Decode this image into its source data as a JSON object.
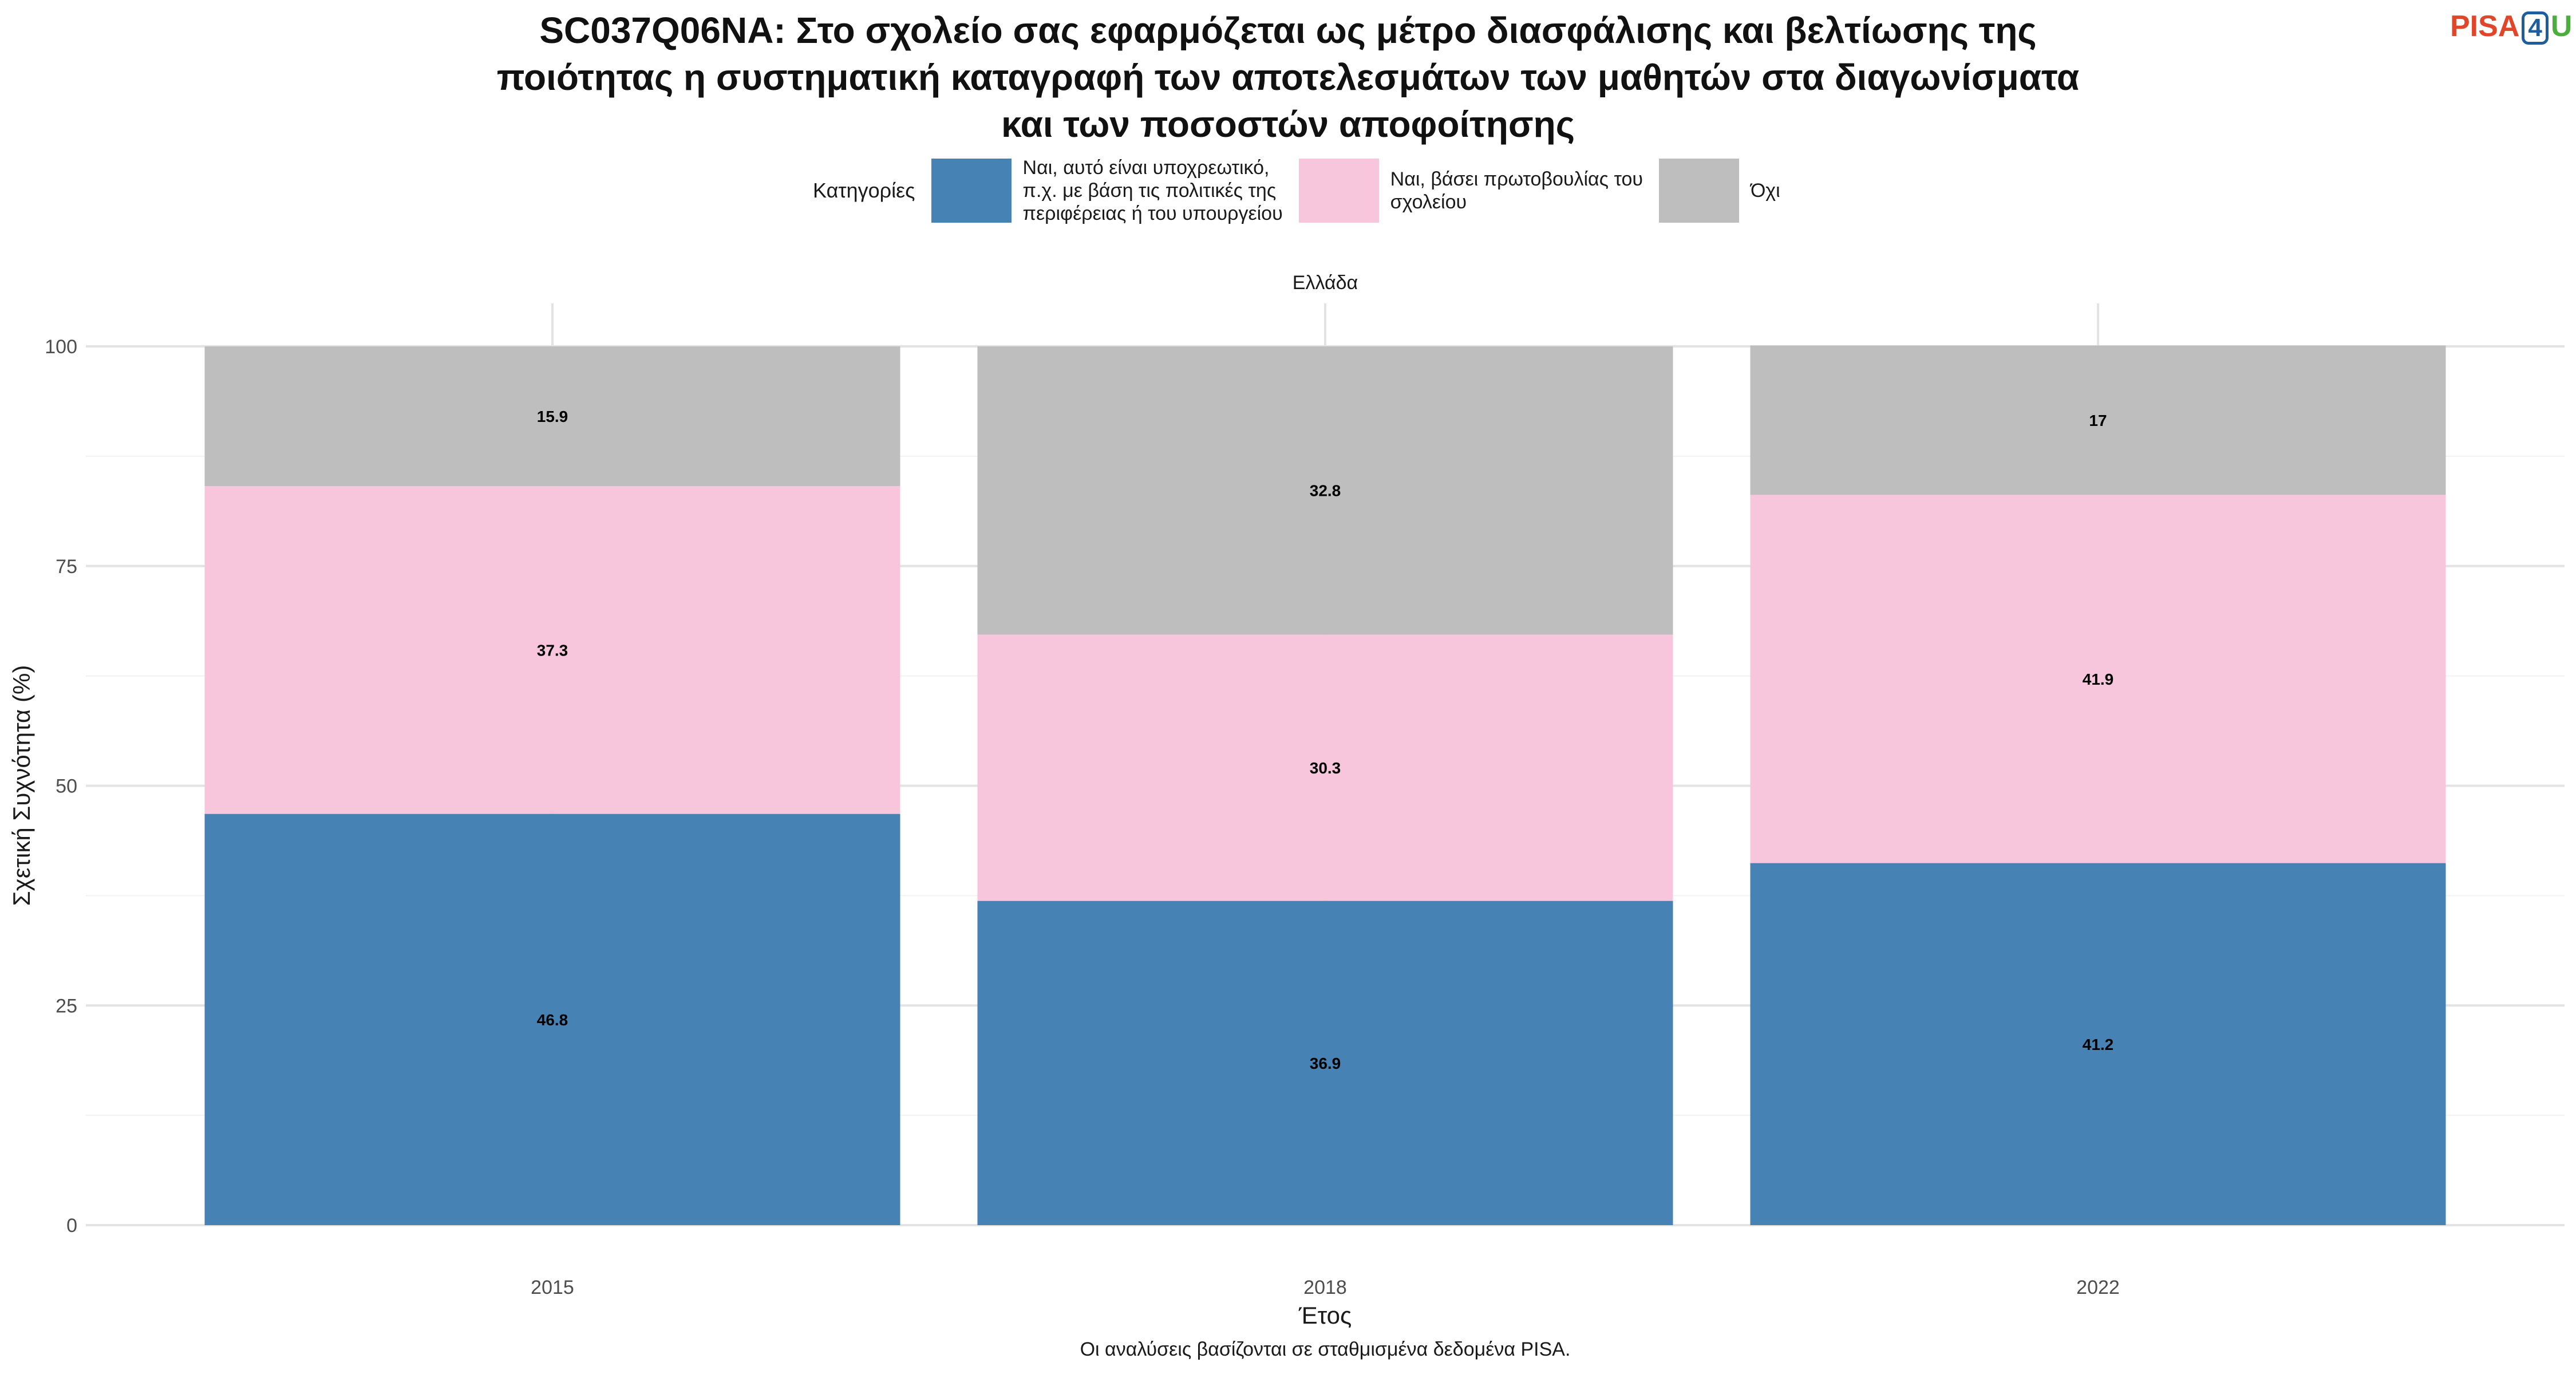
{
  "title_lines": [
    "SC037Q06NA: Στο σχολείο σας εφαρμόζεται ως μέτρο διασφάλισης και βελτίωσης της",
    "ποιότητας η συστηματική καταγραφή των αποτελεσμάτων των μαθητών στα διαγωνίσματα",
    "και των ποσοστών αποφοίτησης"
  ],
  "logo": {
    "pisa": "PISA",
    "four": "4",
    "u": "U"
  },
  "legend": {
    "title": "Κατηγορίες",
    "items": [
      {
        "label": "Ναι, αυτό είναι υποχρεωτικό,\nπ.χ. με βάση τις πολιτικές της\nπεριφέρειας ή του υπουργείου",
        "color": "#4682b4"
      },
      {
        "label": "Ναι, βάσει πρωτοβουλίας του\nσχολείου",
        "color": "#f7c6dc"
      },
      {
        "label": "Όχι",
        "color": "#bebebe"
      }
    ]
  },
  "chart_data": {
    "type": "bar",
    "stacked": true,
    "facet_label": "Ελλάδα",
    "categories": [
      "2015",
      "2018",
      "2022"
    ],
    "series": [
      {
        "name": "Ναι, αυτό είναι υποχρεωτικό, π.χ. με βάση τις πολιτικές της περιφέρειας ή του υπουργείου",
        "values": [
          46.8,
          36.9,
          41.2
        ],
        "color": "#4682b4"
      },
      {
        "name": "Ναι, βάσει πρωτοβουλίας του σχολείου",
        "values": [
          37.3,
          30.3,
          41.9
        ],
        "color": "#f7c6dc"
      },
      {
        "name": "Όχι",
        "values": [
          15.9,
          32.8,
          17
        ],
        "color": "#bebebe"
      }
    ],
    "xlabel": "Έτος",
    "ylabel": "Σχετική Συχνότητα (%)",
    "ylim": [
      0,
      100
    ],
    "yticks": [
      0,
      25,
      50,
      75,
      100
    ],
    "grid": true,
    "legend_position": "top",
    "caption": "Οι αναλύσεις βασίζονται σε σταθμισμένα δεδομένα PISA."
  }
}
